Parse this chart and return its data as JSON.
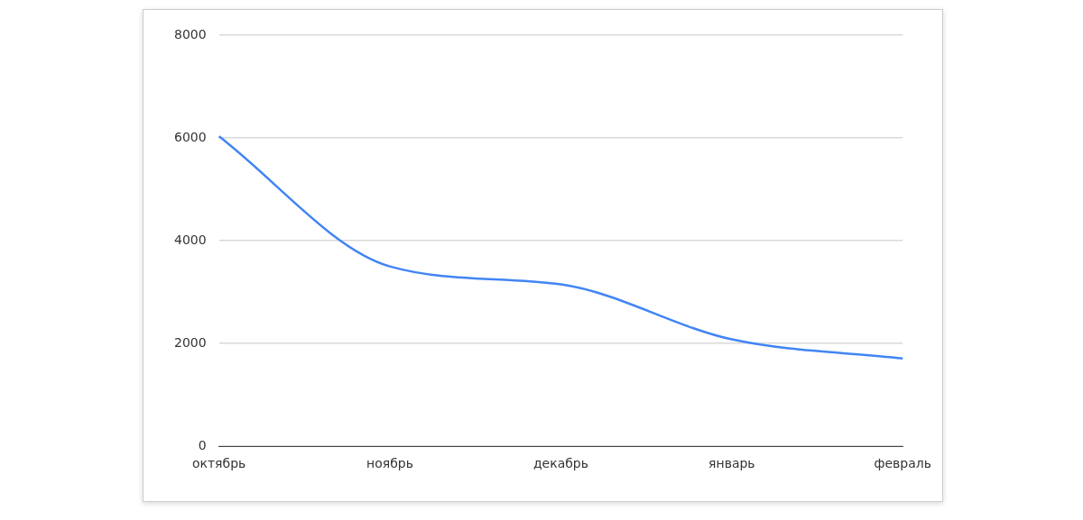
{
  "chart_data": {
    "type": "line",
    "categories": [
      "октябрь",
      "ноябрь",
      "декабрь",
      "январь",
      "февраль"
    ],
    "series": [
      {
        "color": "#4285f4",
        "values": [
          6030,
          3500,
          3150,
          2080,
          1710
        ]
      }
    ],
    "ylim": [
      0,
      8000
    ],
    "yticks": [
      0,
      2000,
      4000,
      6000,
      8000
    ],
    "grid": "y"
  }
}
